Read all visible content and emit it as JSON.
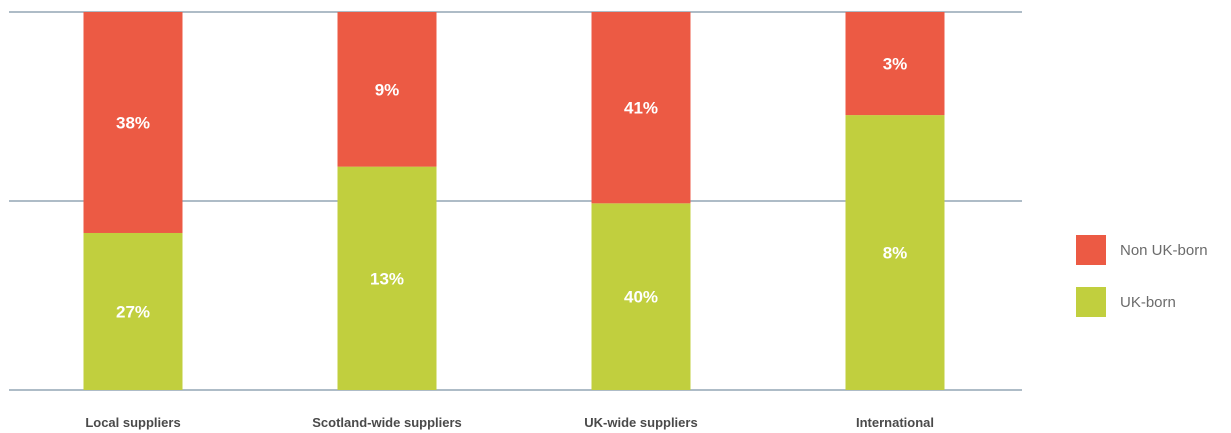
{
  "chart_data": {
    "type": "bar",
    "stacked": true,
    "categories": [
      "Local suppliers",
      "Scotland-wide suppliers",
      "UK-wide suppliers",
      "International"
    ],
    "series": [
      {
        "name": "UK-born",
        "color": "#c1cf3e",
        "values": [
          27,
          13,
          40,
          8
        ],
        "labels": [
          "27%",
          "13%",
          "40%",
          "8%"
        ]
      },
      {
        "name": "Non UK-born",
        "color": "#ec5a44",
        "values": [
          38,
          9,
          41,
          3
        ],
        "labels": [
          "38%",
          "9%",
          "41%",
          "3%"
        ]
      }
    ],
    "normalized_to": 100,
    "gridlines": 3,
    "legend_position": "right",
    "legend_order": [
      "Non UK-born",
      "UK-born"
    ]
  }
}
